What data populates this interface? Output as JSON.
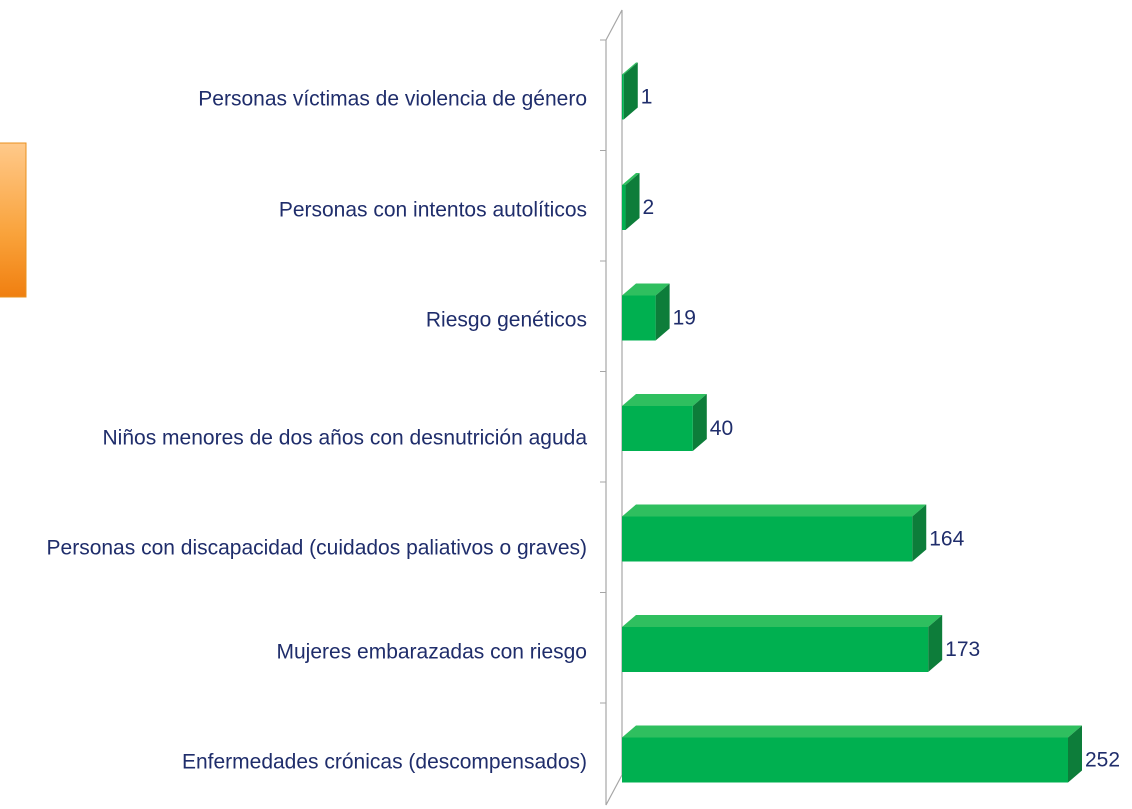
{
  "chart_data": {
    "type": "bar",
    "orientation": "horizontal",
    "categories": [
      "Personas víctimas de violencia de género",
      "Personas con intentos autolíticos",
      "Riesgo  genéticos",
      "Niños menores de dos años con desnutrición aguda",
      "Personas con discapacidad (cuidados paliativos o graves)",
      "Mujeres embarazadas con riesgo",
      "Enfermedades crónicas (descompensados)"
    ],
    "values": [
      1,
      2,
      19,
      40,
      164,
      173,
      252
    ],
    "color": "#00b050"
  }
}
